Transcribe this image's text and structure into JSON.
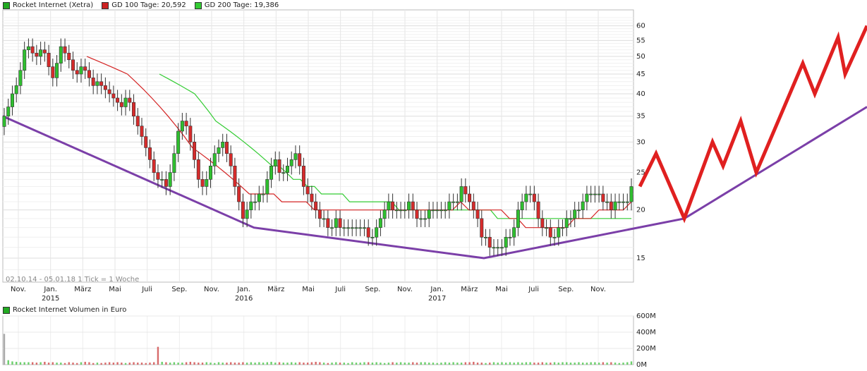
{
  "chart_data": [
    {
      "type": "candlestick",
      "legend": [
        {
          "label": "Rocket Internet (Xetra)",
          "color": "#22aa22"
        },
        {
          "label": "GD 100 Tage: 20,592",
          "color": "#cc2222"
        },
        {
          "label": "GD 200 Tage: 19,386",
          "color": "#33cc33"
        }
      ],
      "period_note": "02.10.14 - 05.01.18   1 Tick = 1 Woche",
      "y_axis": {
        "ticks": [
          15,
          20,
          25,
          30,
          35,
          40,
          45,
          50,
          55,
          60
        ],
        "scale": "log",
        "range": [
          13,
          66
        ]
      },
      "x_axis": {
        "month_ticks": [
          "Nov.",
          "Jan.",
          "März",
          "Mai",
          "Juli",
          "Sep.",
          "Nov.",
          "Jan.",
          "März",
          "Mai",
          "Juli",
          "Sep.",
          "Nov.",
          "Jan.",
          "März",
          "Mai",
          "Juli",
          "Sep.",
          "Nov."
        ],
        "year_labels": [
          "2015",
          "2016",
          "2017"
        ]
      },
      "close_series": [
        35,
        37,
        40,
        42,
        46,
        52,
        53,
        51,
        50,
        52,
        51,
        47,
        44,
        48,
        53,
        51,
        49,
        46,
        45,
        47,
        46,
        44,
        42,
        43,
        42,
        41,
        40,
        39,
        38,
        37,
        39,
        38,
        35,
        33,
        31,
        29,
        27,
        25,
        24,
        24,
        23,
        25,
        28,
        32,
        34,
        33,
        30,
        27,
        24,
        23,
        24,
        26,
        28,
        29,
        30,
        28,
        26,
        23,
        21,
        19,
        20,
        21,
        21,
        22,
        22,
        24,
        26,
        27,
        25,
        25,
        26,
        27,
        28,
        26,
        23,
        22,
        21,
        20,
        19,
        19,
        18,
        18,
        19,
        18,
        18,
        18,
        18,
        18,
        18,
        18,
        17,
        17,
        18,
        19,
        20,
        21,
        20,
        20,
        20,
        20,
        21,
        20,
        19,
        19,
        19,
        20,
        20,
        20,
        20,
        20,
        21,
        21,
        21,
        23,
        22,
        21,
        20,
        19,
        17,
        17,
        16,
        16,
        16,
        16,
        17,
        17,
        18,
        20,
        21,
        22,
        22,
        21,
        19,
        18,
        18,
        17,
        17,
        18,
        18,
        19,
        19,
        20,
        20,
        21,
        22,
        22,
        22,
        22,
        21,
        21,
        20,
        21,
        21,
        21,
        21,
        23
      ],
      "ma100_series": [
        50,
        49,
        48,
        47,
        46,
        45,
        43,
        41,
        39,
        37,
        35,
        33,
        31,
        29,
        28,
        27,
        26,
        25,
        24,
        23,
        22,
        22,
        22,
        22,
        21,
        21,
        21,
        21,
        20,
        20,
        20,
        20,
        20,
        20,
        20,
        20,
        20,
        20,
        20,
        20,
        20,
        20,
        20,
        20,
        20,
        20,
        21,
        20,
        20,
        20,
        20,
        20,
        19,
        19,
        18,
        18,
        18,
        18,
        18,
        18,
        19,
        19,
        19,
        20,
        20,
        20,
        20,
        21
      ],
      "ma200_series": [
        45,
        44,
        43,
        42,
        41,
        40,
        38,
        36,
        34,
        33,
        32,
        31,
        30,
        29,
        28,
        27,
        26,
        26,
        25,
        24,
        24,
        23,
        23,
        22,
        22,
        22,
        22,
        21,
        21,
        21,
        21,
        21,
        21,
        21,
        20,
        20,
        20,
        20,
        20,
        20,
        20,
        20,
        20,
        20,
        20,
        20,
        20,
        20,
        19,
        19,
        19,
        19,
        19,
        19,
        19,
        19,
        19,
        19,
        19,
        19,
        19,
        19,
        19,
        19,
        19,
        19,
        19,
        19
      ],
      "support_line": [
        35,
        18,
        15,
        19,
        37
      ],
      "projection_zigzag": [
        23,
        28,
        19,
        30,
        26,
        34,
        25,
        48,
        40,
        56,
        45,
        60
      ]
    },
    {
      "type": "bar",
      "legend": [
        {
          "label": "Rocket Internet Volumen in Euro",
          "color": "#22aa22"
        }
      ],
      "y_axis": {
        "ticks": [
          "0M",
          "200M",
          "400M",
          "600M"
        ],
        "range": [
          0,
          600
        ]
      },
      "values": [
        380,
        55,
        40,
        35,
        30,
        30,
        30,
        30,
        25,
        30,
        35,
        25,
        30,
        25,
        25,
        20,
        30,
        25,
        20,
        30,
        35,
        30,
        20,
        25,
        20,
        25,
        30,
        25,
        30,
        25,
        20,
        25,
        30,
        25,
        25,
        20,
        25,
        30,
        220,
        35,
        30,
        25,
        30,
        25,
        25,
        30,
        35,
        30,
        25,
        25,
        30,
        25,
        20,
        30,
        25,
        25,
        30,
        25,
        25,
        30,
        25,
        30,
        25,
        30,
        25,
        30,
        35,
        25,
        30,
        25,
        25,
        30,
        25,
        30,
        25,
        25,
        30,
        35,
        30,
        25,
        20,
        25,
        30,
        25,
        25,
        20,
        30,
        25,
        25,
        30,
        30,
        25,
        30,
        25,
        20,
        25,
        30,
        25,
        30,
        25,
        25,
        30,
        25,
        30,
        30,
        25,
        25,
        20,
        25,
        30,
        25,
        30,
        25,
        25,
        30,
        30,
        35,
        25,
        25,
        20,
        25,
        30,
        25,
        30,
        25,
        30,
        25,
        30,
        25,
        30,
        30,
        25,
        25,
        30,
        25,
        25,
        30,
        25,
        30,
        30,
        25,
        25,
        30,
        25,
        25,
        30,
        30,
        25,
        30,
        25,
        30,
        25,
        20,
        25,
        30,
        40
      ]
    }
  ]
}
